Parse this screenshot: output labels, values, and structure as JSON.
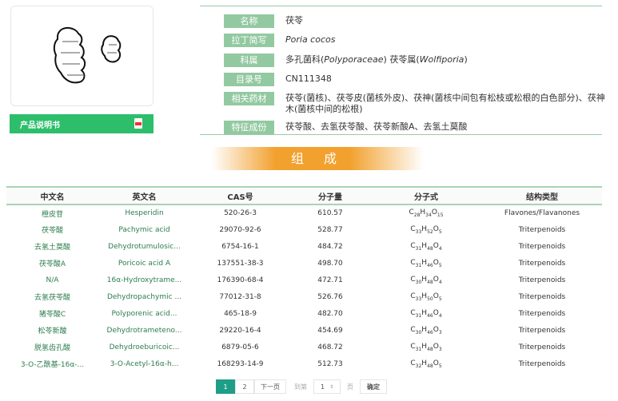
{
  "sidebar": {
    "pdf_label": "产品说明书",
    "pdf_icon": "pdf-icon",
    "image_alt": "茯苓"
  },
  "info": [
    {
      "label": "名称",
      "value": "茯苓"
    },
    {
      "label": "拉丁简写",
      "value": "Poria cocos",
      "italic": true
    },
    {
      "label": "科属",
      "value_parts": [
        "多孔菌科(",
        "Polyporaceae",
        ") 茯苓属(",
        "Wolfiporia",
        ")"
      ]
    },
    {
      "label": "目录号",
      "value": "CN111348"
    },
    {
      "label": "相关药材",
      "value": "茯苓(菌核)、茯苓皮(菌核外皮)、茯神(菌核中间包有松枝或松根的白色部分)、茯神木(菌核中间的松根)"
    },
    {
      "label": "特征成份",
      "value": "茯苓酸、去氢茯苓酸、茯苓新酸A、去氢土莫酸"
    }
  ],
  "section_title": "组 成",
  "table": {
    "headers": [
      "中文名",
      "英文名",
      "CAS号",
      "分子量",
      "分子式",
      "结构类型"
    ],
    "rows": [
      [
        "橙皮苷",
        "Hesperidin",
        "520-26-3",
        "610.57",
        "C28H34O15",
        "Flavones/Flavanones"
      ],
      [
        "茯苓酸",
        "Pachymic acid",
        "29070-92-6",
        "528.77",
        "C33H52O5",
        "Triterpenoids"
      ],
      [
        "去氢土莫酸",
        "Dehydrotumulosic...",
        "6754-16-1",
        "484.72",
        "C31H48O4",
        "Triterpenoids"
      ],
      [
        "茯苓酸A",
        "Poricoic acid A",
        "137551-38-3",
        "498.70",
        "C31H46O5",
        "Triterpenoids"
      ],
      [
        "N/A",
        "16α-Hydroxytrame...",
        "176390-68-4",
        "472.71",
        "C30H48O4",
        "Triterpenoids"
      ],
      [
        "去氢茯苓酸",
        "Dehydropachymic ...",
        "77012-31-8",
        "526.76",
        "C33H50O5",
        "Triterpenoids"
      ],
      [
        "猪苓酸C",
        "Polyporenic acid...",
        "465-18-9",
        "482.70",
        "C31H46O4",
        "Triterpenoids"
      ],
      [
        "松苓新酸",
        "Dehydrotrameteno...",
        "29220-16-4",
        "454.69",
        "C30H46O3",
        "Triterpenoids"
      ],
      [
        "脱氢齿孔酸",
        "Dehydroeburicoic...",
        "6879-05-6",
        "468.72",
        "C31H48O3",
        "Triterpenoids"
      ],
      [
        "3-O-乙酰基-16α-...",
        "3-O-Acetyl-16α-h...",
        "168293-14-9",
        "512.73",
        "C32H48O5",
        "Triterpenoids"
      ]
    ]
  },
  "pager": {
    "pages": [
      "1",
      "2"
    ],
    "current": "1",
    "next": "下一页",
    "goto": "到第",
    "page_input": "1",
    "page_unit": "页",
    "confirm": "确定"
  }
}
